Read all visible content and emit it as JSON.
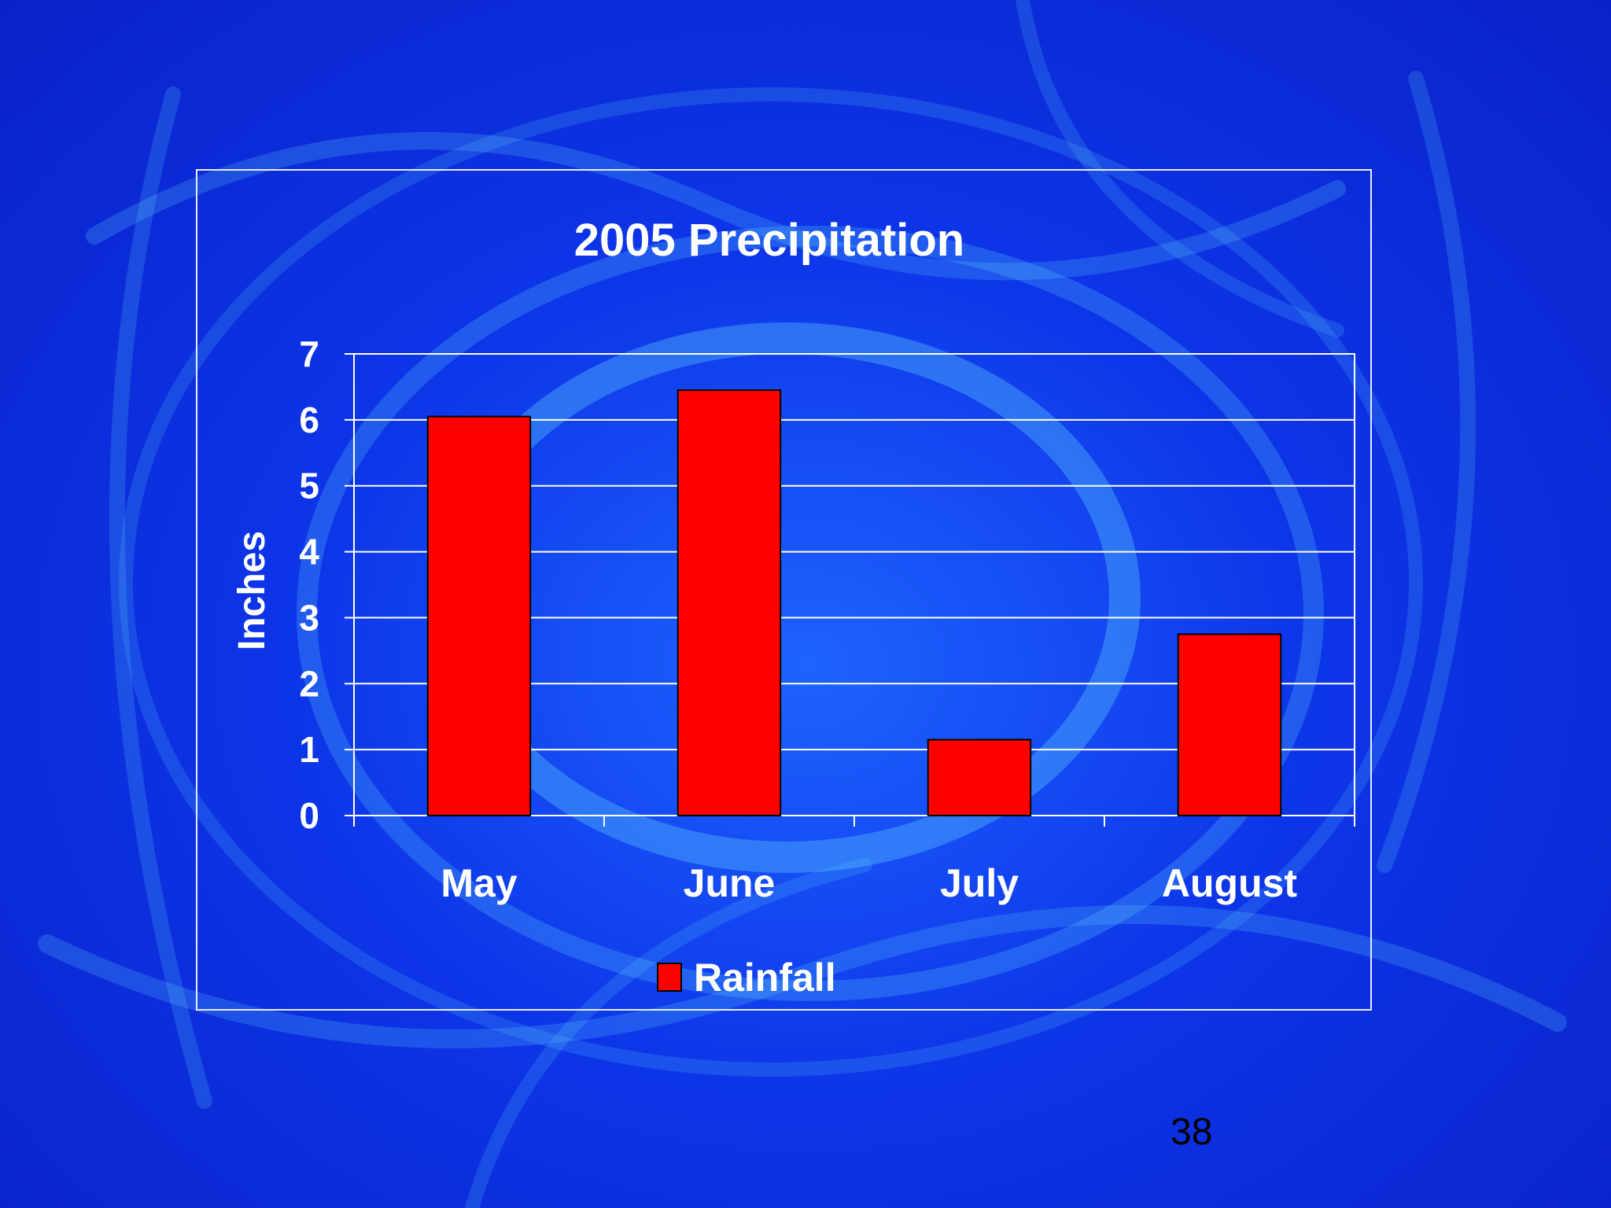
{
  "slide": {
    "page_number": "38"
  },
  "colors": {
    "bar": "#ff0000",
    "grid": "#ffffff",
    "text": "#ffffff"
  },
  "chart_data": {
    "type": "bar",
    "title": "2005 Precipitation",
    "xlabel": "",
    "ylabel": "Inches",
    "categories": [
      "May",
      "June",
      "July",
      "August"
    ],
    "series": [
      {
        "name": "Rainfall",
        "values": [
          6.05,
          6.45,
          1.15,
          2.75
        ]
      }
    ],
    "ylim": [
      0,
      7
    ],
    "yticks": [
      0,
      1,
      2,
      3,
      4,
      5,
      6,
      7
    ],
    "grid": true,
    "legend": "bottom"
  }
}
